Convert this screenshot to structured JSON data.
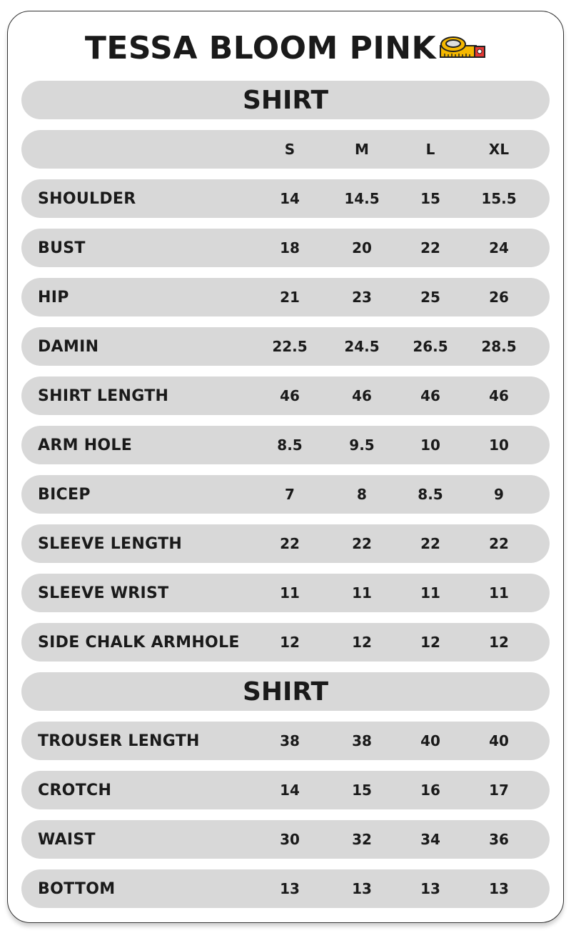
{
  "title": "TESSA BLOOM PINK",
  "title_icon": "measuring-tape-icon",
  "colors": {
    "row_bg": "#d8d8d8",
    "text": "#1a1a1a",
    "tape_yellow": "#f5b800",
    "tape_red": "#e53935"
  },
  "sizes": [
    "S",
    "M",
    "L",
    "XL"
  ],
  "shirt": {
    "heading": "SHIRT",
    "rows": [
      {
        "label": "SHOULDER",
        "values": [
          "14",
          "14.5",
          "15",
          "15.5"
        ]
      },
      {
        "label": "BUST",
        "values": [
          "18",
          "20",
          "22",
          "24"
        ]
      },
      {
        "label": "HIP",
        "values": [
          "21",
          "23",
          "25",
          "26"
        ]
      },
      {
        "label": "DAMIN",
        "values": [
          "22.5",
          "24.5",
          "26.5",
          "28.5"
        ]
      },
      {
        "label": "SHIRT LENGTH",
        "values": [
          "46",
          "46",
          "46",
          "46"
        ]
      },
      {
        "label": "ARM HOLE",
        "values": [
          "8.5",
          "9.5",
          "10",
          "10"
        ]
      },
      {
        "label": "BICEP",
        "values": [
          "7",
          "8",
          "8.5",
          "9"
        ]
      },
      {
        "label": "SLEEVE LENGTH",
        "values": [
          "22",
          "22",
          "22",
          "22"
        ]
      },
      {
        "label": "SLEEVE WRIST",
        "values": [
          "11",
          "11",
          "11",
          "11"
        ]
      },
      {
        "label": "SIDE CHALK ARMHOLE",
        "values": [
          "12",
          "12",
          "12",
          "12"
        ]
      }
    ]
  },
  "trouser": {
    "heading": "SHIRT",
    "rows": [
      {
        "label": "TROUSER LENGTH",
        "values": [
          "38",
          "38",
          "40",
          "40"
        ]
      },
      {
        "label": "CROTCH",
        "values": [
          "14",
          "15",
          "16",
          "17"
        ]
      },
      {
        "label": "WAIST",
        "values": [
          "30",
          "32",
          "34",
          "36"
        ]
      },
      {
        "label": "BOTTOM",
        "values": [
          "13",
          "13",
          "13",
          "13"
        ]
      }
    ]
  }
}
